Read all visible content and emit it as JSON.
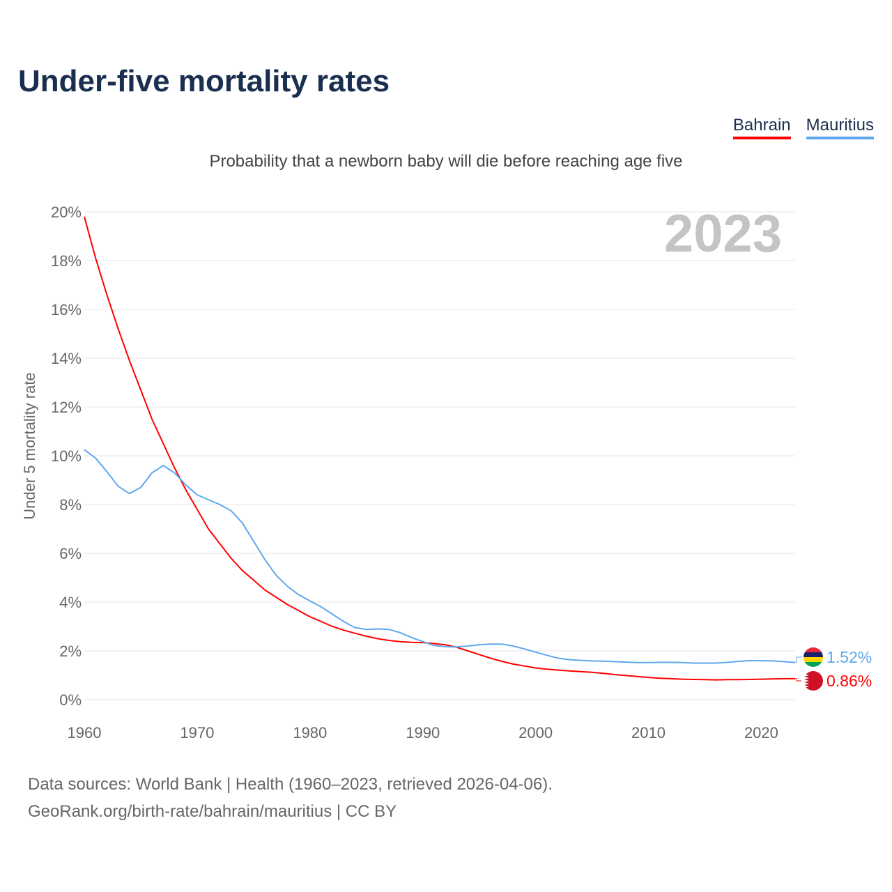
{
  "title": "Under-five mortality rates",
  "subtitle": "Probability that a newborn baby will die before reaching age five",
  "footer": {
    "line1": "Data sources: World Bank | Health (1960–2023, retrieved 2026-04-06).",
    "line2": "GeoRank.org/birth-rate/bahrain/mauritius | CC BY"
  },
  "chart_data": {
    "type": "line",
    "title": "Under-five mortality rates",
    "ylabel": "Under 5 mortality rate",
    "xlabel": "",
    "year_label": "2023",
    "xlim": [
      1960,
      2023
    ],
    "ylim": [
      0,
      20
    ],
    "x_ticks": [
      "1960",
      "1970",
      "1980",
      "1990",
      "2000",
      "2010",
      "2020"
    ],
    "y_ticks": [
      "0%",
      "2%",
      "4%",
      "6%",
      "8%",
      "10%",
      "12%",
      "14%",
      "16%",
      "18%",
      "20%"
    ],
    "grid": true,
    "legend_position": "top-right",
    "x_start": 1960,
    "series": [
      {
        "name": "Bahrain",
        "color": "#ff0000",
        "end_label": "0.86%",
        "flag": "bahrain-flag",
        "values": [
          19.8,
          18.1,
          16.6,
          15.2,
          13.9,
          12.7,
          11.5,
          10.5,
          9.5,
          8.6,
          7.8,
          7.0,
          6.4,
          5.8,
          5.3,
          4.9,
          4.5,
          4.2,
          3.9,
          3.65,
          3.4,
          3.2,
          3.0,
          2.85,
          2.72,
          2.6,
          2.5,
          2.43,
          2.38,
          2.35,
          2.34,
          2.3,
          2.25,
          2.15,
          2.0,
          1.85,
          1.7,
          1.57,
          1.46,
          1.38,
          1.3,
          1.25,
          1.21,
          1.18,
          1.15,
          1.12,
          1.08,
          1.03,
          0.99,
          0.95,
          0.91,
          0.88,
          0.86,
          0.84,
          0.83,
          0.82,
          0.81,
          0.82,
          0.82,
          0.83,
          0.84,
          0.85,
          0.86,
          0.86
        ]
      },
      {
        "name": "Mauritius",
        "color": "#5ea8ee",
        "end_label": "1.52%",
        "flag": "mauritius-flag",
        "values": [
          10.25,
          9.9,
          9.35,
          8.75,
          8.45,
          8.7,
          9.3,
          9.6,
          9.3,
          8.8,
          8.4,
          8.2,
          8.0,
          7.75,
          7.25,
          6.5,
          5.75,
          5.1,
          4.65,
          4.3,
          4.05,
          3.8,
          3.5,
          3.2,
          2.95,
          2.88,
          2.9,
          2.88,
          2.75,
          2.55,
          2.38,
          2.22,
          2.17,
          2.16,
          2.2,
          2.25,
          2.28,
          2.28,
          2.2,
          2.08,
          1.95,
          1.82,
          1.7,
          1.64,
          1.61,
          1.59,
          1.58,
          1.56,
          1.54,
          1.52,
          1.52,
          1.53,
          1.53,
          1.52,
          1.5,
          1.5,
          1.5,
          1.53,
          1.57,
          1.6,
          1.6,
          1.59,
          1.56,
          1.52
        ]
      }
    ]
  }
}
